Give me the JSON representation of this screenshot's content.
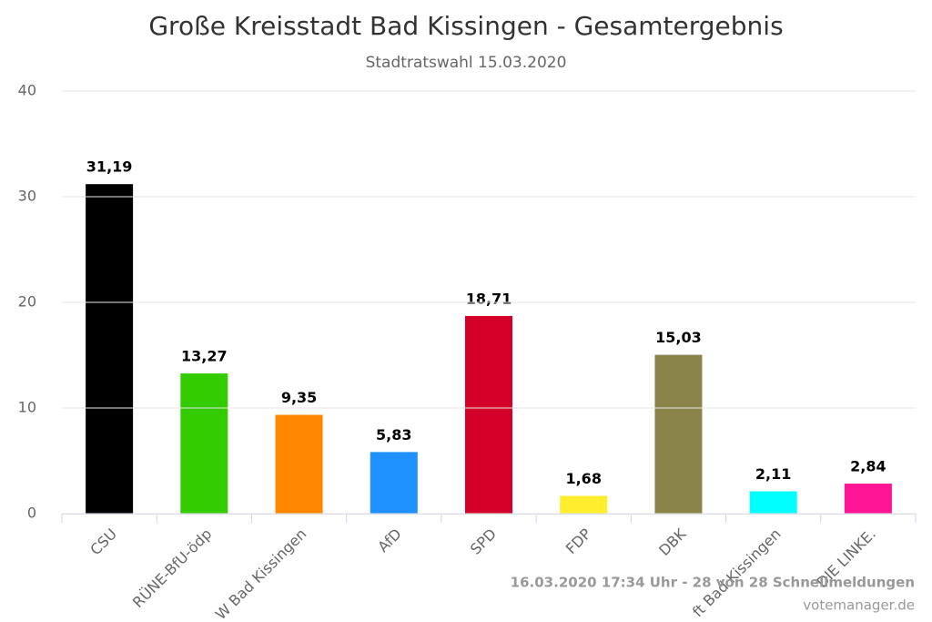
{
  "chart_data": {
    "type": "bar",
    "title": "Große Kreisstadt Bad Kissingen - Gesamtergebnis",
    "subtitle": "Stadtratswahl 15.03.2020",
    "categories": [
      "CSU",
      "RÜNE-BfU-ödp",
      "W Bad Kissingen",
      "AfD",
      "SPD",
      "FDP",
      "DBK",
      "ft Bad Kissingen",
      "DIE LINKE."
    ],
    "values": [
      31.19,
      13.27,
      9.35,
      5.83,
      18.71,
      1.68,
      15.03,
      2.11,
      2.84
    ],
    "value_labels": [
      "31,19",
      "13,27",
      "9,35",
      "5,83",
      "18,71",
      "1,68",
      "15,03",
      "2,11",
      "2,84"
    ],
    "colors": [
      "#000000",
      "#33cc00",
      "#ff8800",
      "#1e90ff",
      "#d4002a",
      "#ffed2e",
      "#8b844a",
      "#00ffff",
      "#ff1493"
    ],
    "ylim": [
      0,
      40
    ],
    "yticks": [
      0,
      10,
      20,
      30,
      40
    ],
    "grid": true,
    "footer": "16.03.2020 17:34 Uhr - 28 von 28 Schnellmeldungen",
    "credit": "votemanager.de"
  }
}
